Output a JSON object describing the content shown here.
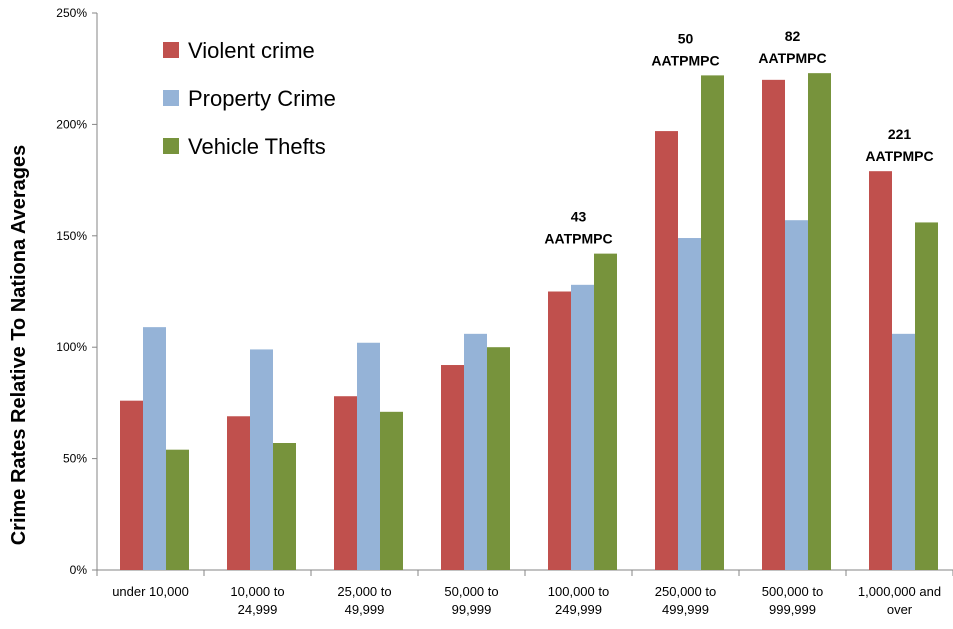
{
  "chart_data": {
    "type": "bar",
    "title": "",
    "xlabel": "",
    "ylabel": "Crime Rates Relative To Nationa Averages",
    "ylim": [
      0,
      250
    ],
    "ytick_values": [
      0,
      50,
      100,
      150,
      200,
      250
    ],
    "ytick_labels": [
      "0%",
      "50%",
      "100%",
      "150%",
      "200%",
      "250%"
    ],
    "grid": false,
    "legend_position": "top-left",
    "categories": [
      [
        "under 10,000"
      ],
      [
        "10,000 to",
        "24,999"
      ],
      [
        "25,000 to",
        "49,999"
      ],
      [
        "50,000 to",
        "99,999"
      ],
      [
        "100,000 to",
        "249,999"
      ],
      [
        "250,000 to",
        "499,999"
      ],
      [
        "500,000 to",
        "999,999"
      ],
      [
        "1,000,000 and",
        "over"
      ]
    ],
    "series": [
      {
        "name": "Violent crime",
        "color": "#c0504d",
        "values": [
          76,
          69,
          78,
          92,
          125,
          197,
          220,
          179
        ]
      },
      {
        "name": "Property Crime",
        "color": "#95b3d7",
        "values": [
          109,
          99,
          102,
          106,
          128,
          149,
          157,
          106
        ]
      },
      {
        "name": "Vehicle Thefts",
        "color": "#77933c",
        "values": [
          54,
          57,
          71,
          100,
          142,
          222,
          223,
          156
        ]
      }
    ],
    "annotations": [
      {
        "category_index": 4,
        "lines": [
          "43",
          "AATPMPC"
        ]
      },
      {
        "category_index": 5,
        "lines": [
          "50",
          "AATPMPC"
        ]
      },
      {
        "category_index": 6,
        "lines": [
          "82",
          "AATPMPC"
        ]
      },
      {
        "category_index": 7,
        "lines": [
          "221",
          "AATPMPC"
        ]
      }
    ]
  }
}
